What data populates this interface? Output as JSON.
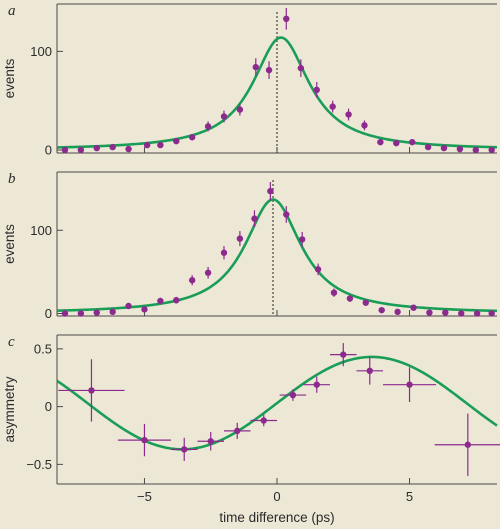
{
  "colors": {
    "background": "#ede7d6",
    "curve": "#1a9e57",
    "points": "#8c2a8e",
    "axis": "#4a4a4a"
  },
  "chart_data": [
    {
      "type": "scatter",
      "panel_label": "a",
      "ylabel": "events",
      "xlabel": "",
      "xlim": [
        -8.3,
        8.3
      ],
      "ylim": [
        -3,
        148
      ],
      "yticks": [
        0,
        100
      ],
      "xticks": [
        -5,
        0,
        5
      ],
      "show_x_tick_labels": false,
      "vline_x": 0,
      "points": [
        {
          "x": -8,
          "y": 0,
          "err": 1
        },
        {
          "x": -7.4,
          "y": 0,
          "err": 1
        },
        {
          "x": -6.8,
          "y": 2,
          "err": 1
        },
        {
          "x": -6.2,
          "y": 3,
          "err": 1
        },
        {
          "x": -5.6,
          "y": 1,
          "err": 1
        },
        {
          "x": -4.9,
          "y": 5,
          "err": 3
        },
        {
          "x": -4.4,
          "y": 5,
          "err": 2
        },
        {
          "x": -3.8,
          "y": 9,
          "err": 3
        },
        {
          "x": -3.2,
          "y": 13,
          "err": 3
        },
        {
          "x": -2.6,
          "y": 24,
          "err": 5
        },
        {
          "x": -2,
          "y": 34,
          "err": 6
        },
        {
          "x": -1.4,
          "y": 41,
          "err": 6
        },
        {
          "x": -0.8,
          "y": 84,
          "err": 9
        },
        {
          "x": -0.3,
          "y": 81,
          "err": 9
        },
        {
          "x": 0.35,
          "y": 133,
          "err": 11
        },
        {
          "x": 0.9,
          "y": 83,
          "err": 9
        },
        {
          "x": 1.5,
          "y": 61,
          "err": 8
        },
        {
          "x": 2.1,
          "y": 44,
          "err": 6
        },
        {
          "x": 2.7,
          "y": 36,
          "err": 6
        },
        {
          "x": 3.3,
          "y": 25,
          "err": 5
        },
        {
          "x": 3.9,
          "y": 8,
          "err": 3
        },
        {
          "x": 4.5,
          "y": 7,
          "err": 3
        },
        {
          "x": 5.1,
          "y": 8,
          "err": 3
        },
        {
          "x": 5.7,
          "y": 3,
          "err": 1
        },
        {
          "x": 6.3,
          "y": 2,
          "err": 1
        },
        {
          "x": 6.9,
          "y": 1,
          "err": 1
        },
        {
          "x": 7.5,
          "y": 0,
          "err": 1
        },
        {
          "x": 8.1,
          "y": 0,
          "err": 1
        }
      ],
      "curve": {
        "model": "lorentzian",
        "amplitude": 114,
        "center": 0.15,
        "gamma": 1.3
      }
    },
    {
      "type": "scatter",
      "panel_label": "b",
      "ylabel": "events",
      "xlabel": "",
      "xlim": [
        -8.3,
        8.3
      ],
      "ylim": [
        -3,
        170
      ],
      "yticks": [
        0,
        100
      ],
      "xticks": [
        -5,
        0,
        5
      ],
      "show_x_tick_labels": false,
      "vline_x": -0.15,
      "points": [
        {
          "x": -8,
          "y": 0,
          "err": 1
        },
        {
          "x": -7.4,
          "y": 0,
          "err": 1
        },
        {
          "x": -6.8,
          "y": 1,
          "err": 1
        },
        {
          "x": -6.2,
          "y": 2,
          "err": 1
        },
        {
          "x": -5.6,
          "y": 9,
          "err": 3
        },
        {
          "x": -5,
          "y": 5,
          "err": 3
        },
        {
          "x": -4.4,
          "y": 15,
          "err": 4
        },
        {
          "x": -3.8,
          "y": 16,
          "err": 4
        },
        {
          "x": -3.2,
          "y": 40,
          "err": 6
        },
        {
          "x": -2.6,
          "y": 49,
          "err": 7
        },
        {
          "x": -2,
          "y": 73,
          "err": 8
        },
        {
          "x": -1.4,
          "y": 90,
          "err": 9
        },
        {
          "x": -0.85,
          "y": 114,
          "err": 10
        },
        {
          "x": -0.25,
          "y": 147,
          "err": 11
        },
        {
          "x": 0.35,
          "y": 119,
          "err": 10
        },
        {
          "x": 0.95,
          "y": 89,
          "err": 9
        },
        {
          "x": 1.55,
          "y": 53,
          "err": 7
        },
        {
          "x": 2.15,
          "y": 25,
          "err": 5
        },
        {
          "x": 2.75,
          "y": 18,
          "err": 4
        },
        {
          "x": 3.35,
          "y": 13,
          "err": 3
        },
        {
          "x": 3.95,
          "y": 4,
          "err": 2
        },
        {
          "x": 4.55,
          "y": 2,
          "err": 1
        },
        {
          "x": 5.15,
          "y": 7,
          "err": 3
        },
        {
          "x": 5.75,
          "y": 1,
          "err": 1
        },
        {
          "x": 6.35,
          "y": 1,
          "err": 1
        },
        {
          "x": 6.95,
          "y": 0,
          "err": 1
        },
        {
          "x": 7.55,
          "y": 0,
          "err": 1
        },
        {
          "x": 8.1,
          "y": 0,
          "err": 1
        }
      ],
      "curve": {
        "model": "lorentzian",
        "amplitude": 137,
        "center": -0.15,
        "gamma": 1.3
      }
    },
    {
      "type": "scatter",
      "panel_label": "c",
      "ylabel": "asymmetry",
      "xlabel": "time difference (ps)",
      "xlim": [
        -8.3,
        8.3
      ],
      "ylim": [
        -0.67,
        0.62
      ],
      "yticks": [
        -0.5,
        0,
        0.5
      ],
      "xticks": [
        -5,
        0,
        5
      ],
      "show_x_tick_labels": true,
      "points": [
        {
          "x": -7,
          "y": 0.14,
          "err": 0.27,
          "xerr": 1.25
        },
        {
          "x": -5,
          "y": -0.29,
          "err": 0.14,
          "xerr": 1.0
        },
        {
          "x": -3.5,
          "y": -0.37,
          "err": 0.1,
          "xerr": 0.5
        },
        {
          "x": -2.5,
          "y": -0.3,
          "err": 0.08,
          "xerr": 0.5
        },
        {
          "x": -1.5,
          "y": -0.21,
          "err": 0.07,
          "xerr": 0.5
        },
        {
          "x": -0.5,
          "y": -0.12,
          "err": 0.05,
          "xerr": 0.5
        },
        {
          "x": 0.6,
          "y": 0.1,
          "err": 0.05,
          "xerr": 0.5
        },
        {
          "x": 1.5,
          "y": 0.19,
          "err": 0.07,
          "xerr": 0.5
        },
        {
          "x": 2.5,
          "y": 0.45,
          "err": 0.1,
          "xerr": 0.5
        },
        {
          "x": 3.5,
          "y": 0.31,
          "err": 0.12,
          "xerr": 0.5
        },
        {
          "x": 5,
          "y": 0.19,
          "err": 0.15,
          "xerr": 1.0
        },
        {
          "x": 7.2,
          "y": -0.33,
          "err": 0.27,
          "xerr": 1.25
        }
      ],
      "curve": {
        "model": "sine",
        "amplitude": 0.4,
        "period": 14.3,
        "phase": 0.0,
        "offset": 0.03
      }
    }
  ]
}
